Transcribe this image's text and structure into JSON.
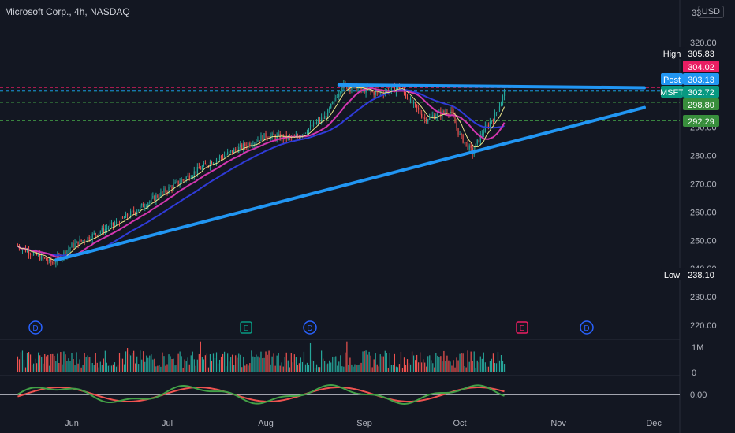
{
  "title": "Microsoft Corp., 4h, NASDAQ",
  "currency": "USD",
  "top_axis_value": "33",
  "colors": {
    "background": "#131722",
    "up": "#26a69a",
    "down": "#ef5350",
    "trendline": "#2196f3",
    "ma_fast": "#e8e388",
    "ma_mid": "#d336b0",
    "ma_slow": "#2f3bd8",
    "high_box": "#131722",
    "post_box": "#2196f3",
    "msft_box": "#089981",
    "green_box": "#388e3c",
    "red_box": "#e91e63",
    "low_box": "#131722"
  },
  "chart_data": {
    "type": "candlestick",
    "symbol": "MSFT",
    "interval": "4h",
    "exchange": "NASDAQ",
    "price_axis": {
      "ticks": [
        "320.00",
        "290.00",
        "280.00",
        "270.00",
        "260.00",
        "250.00",
        "240.00",
        "230.00",
        "220.00"
      ],
      "range": [
        216,
        334
      ]
    },
    "x_axis": {
      "labels": [
        "Jun",
        "Jul",
        "Aug",
        "Sep",
        "Oct",
        "Nov",
        "Dec"
      ]
    },
    "price_tags": [
      {
        "label": "High",
        "value": "305.83",
        "style": "high"
      },
      {
        "label": "",
        "value": "304.02",
        "style": "red"
      },
      {
        "label": "Post",
        "value": "303.13",
        "style": "post"
      },
      {
        "label": "MSFT",
        "value": "302.72",
        "style": "msft"
      },
      {
        "label": "",
        "value": "298.80",
        "style": "green"
      },
      {
        "label": "",
        "value": "292.29",
        "style": "green"
      },
      {
        "label": "Low",
        "value": "238.10",
        "style": "low"
      }
    ],
    "horizontal_lines": [
      304.02,
      303.13,
      302.72,
      298.8,
      292.29
    ],
    "key_points": [
      {
        "date": "May 15",
        "price": 248
      },
      {
        "date": "May 26",
        "price": 242
      },
      {
        "date": "Jun 1",
        "price": 248
      },
      {
        "date": "Jun 15",
        "price": 256
      },
      {
        "date": "Jul 1",
        "price": 268
      },
      {
        "date": "Jul 15",
        "price": 278
      },
      {
        "date": "Aug 1",
        "price": 287
      },
      {
        "date": "Aug 10",
        "price": 286
      },
      {
        "date": "Aug 20",
        "price": 294
      },
      {
        "date": "Aug 25",
        "price": 305
      },
      {
        "date": "Sep 5",
        "price": 302
      },
      {
        "date": "Sep 12",
        "price": 304
      },
      {
        "date": "Sep 20",
        "price": 293
      },
      {
        "date": "Sep 28",
        "price": 296
      },
      {
        "date": "Oct 1",
        "price": 287
      },
      {
        "date": "Oct 5",
        "price": 281
      },
      {
        "date": "Oct 8",
        "price": 288
      },
      {
        "date": "Oct 12",
        "price": 294
      },
      {
        "date": "Oct 15",
        "price": 302
      }
    ],
    "event_markers": [
      {
        "label": "D",
        "x_label": "May",
        "color": "blue"
      },
      {
        "label": "E",
        "x_label": "Jul",
        "color": "teal"
      },
      {
        "label": "D",
        "x_label": "Aug",
        "color": "blue"
      },
      {
        "label": "E",
        "x_label": "Oct",
        "color": "pink"
      },
      {
        "label": "D",
        "x_label": "Nov",
        "color": "blue"
      }
    ],
    "volume_axis": {
      "ticks": [
        "1M",
        "0"
      ]
    },
    "oscillator_axis": {
      "ticks": [
        "0.00"
      ]
    },
    "trendlines": [
      {
        "name": "resistance",
        "from": {
          "date": "Aug 24",
          "price": 305
        },
        "to": {
          "date": "Nov 28",
          "price": 304
        }
      },
      {
        "name": "support",
        "from": {
          "date": "May 27",
          "price": 243
        },
        "to": {
          "date": "Nov 28",
          "price": 297
        }
      }
    ]
  }
}
